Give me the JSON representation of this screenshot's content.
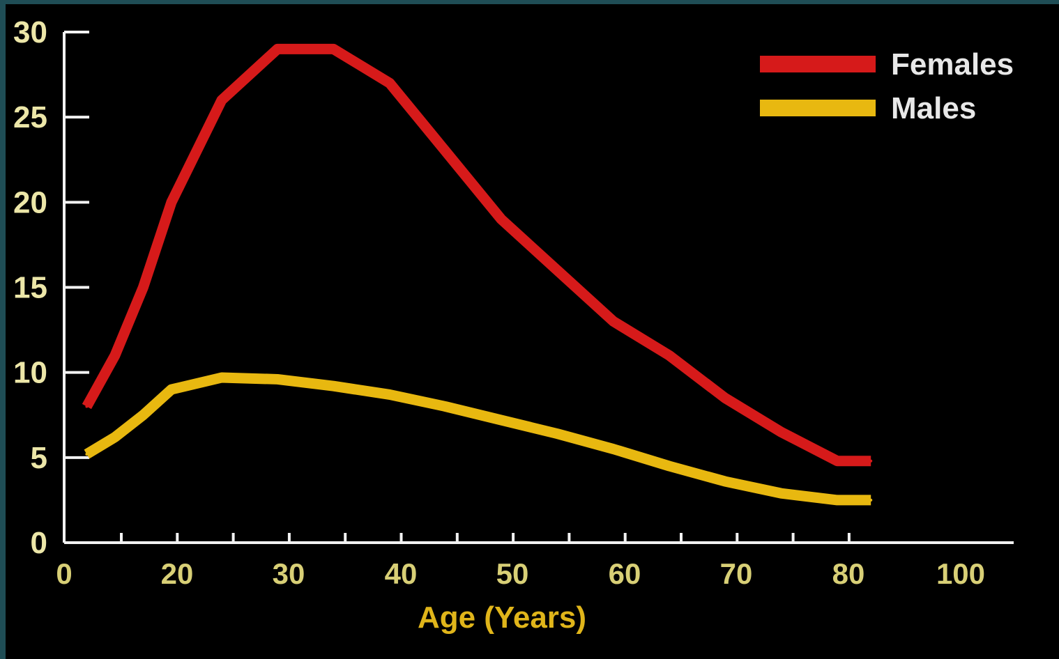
{
  "chart_data": {
    "type": "line",
    "xlabel": "Age (Years)",
    "ylabel": "",
    "y_ticks": [
      "0",
      "5",
      "10",
      "15",
      "20",
      "25",
      "30"
    ],
    "x_tick_labels": [
      "0",
      "20",
      "30",
      "40",
      "50",
      "60",
      "70",
      "80",
      "100"
    ],
    "legend_position": "top-right",
    "grid": false,
    "series": [
      {
        "name": "Females",
        "color": "#d61a1a",
        "x": [
          4,
          9,
          14,
          19,
          24,
          29,
          34,
          39,
          44,
          49,
          54,
          59,
          64,
          69,
          74,
          79,
          84
        ],
        "values": [
          8,
          11,
          15,
          20,
          26,
          29,
          29,
          27,
          23,
          19,
          16,
          13,
          11,
          8.5,
          6.5,
          4.8,
          4.8
        ]
      },
      {
        "name": "Males",
        "color": "#e8b810",
        "x": [
          4,
          9,
          14,
          19,
          24,
          29,
          34,
          39,
          44,
          49,
          54,
          59,
          64,
          69,
          74,
          79,
          84
        ],
        "values": [
          5.2,
          6.2,
          7.5,
          9.0,
          9.7,
          9.6,
          9.2,
          8.7,
          8.0,
          7.2,
          6.4,
          5.5,
          4.5,
          3.6,
          2.9,
          2.5,
          2.5
        ]
      }
    ]
  }
}
